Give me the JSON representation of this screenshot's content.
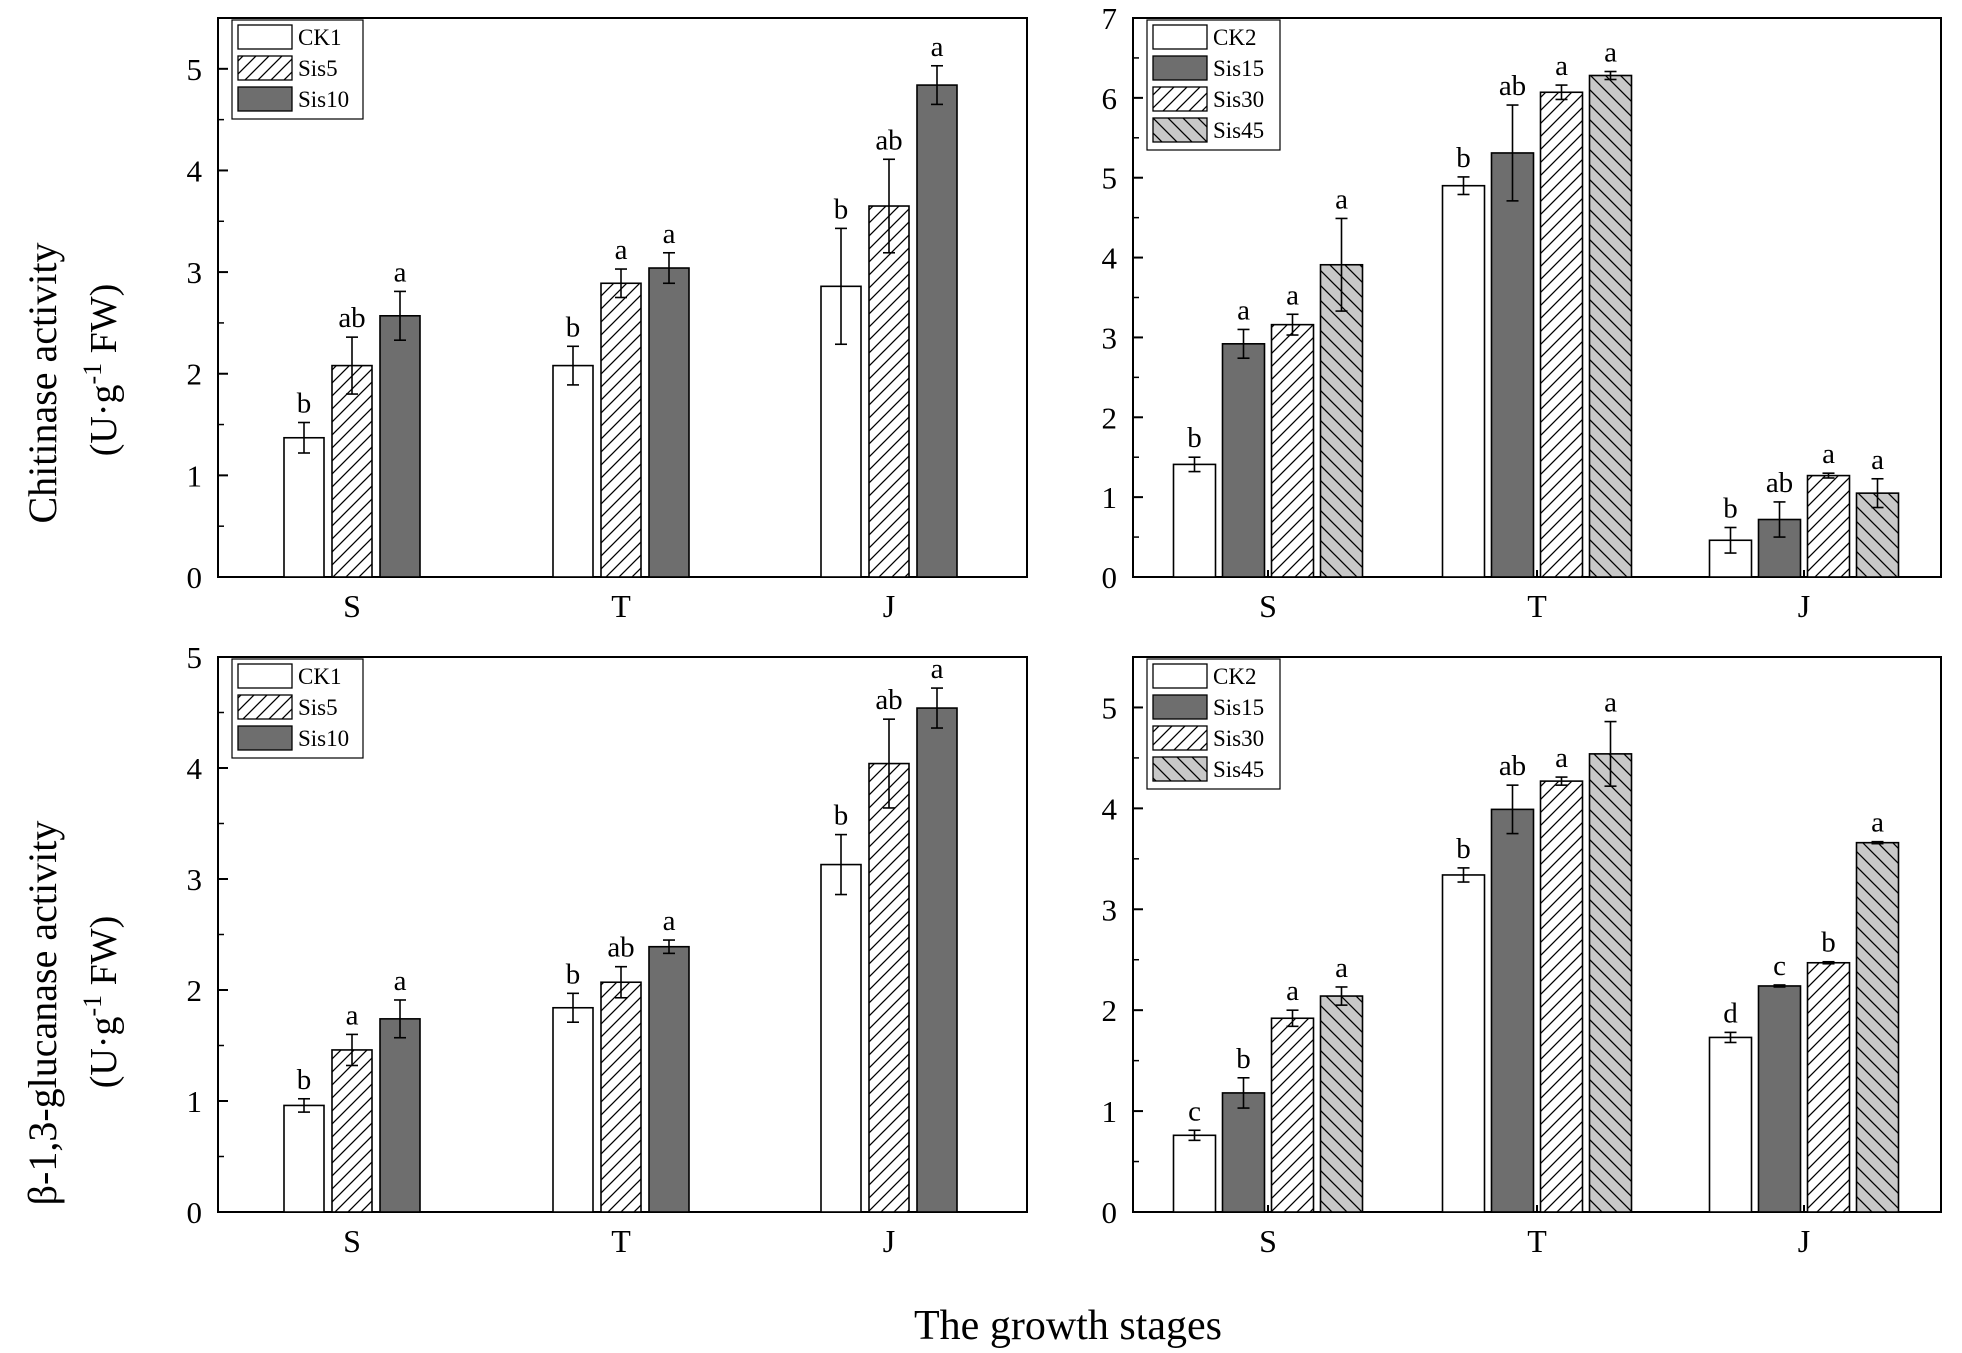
{
  "figure": {
    "ylabel_top_line1": "Chitinase activity",
    "ylabel_top_line2_pre": "(U·g",
    "ylabel_top_line2_sup": "-1",
    "ylabel_top_line2_post": " FW)",
    "ylabel_bottom_line1": "β-1,3-glucanase activity",
    "ylabel_bottom_line2_pre": "(U·g",
    "ylabel_bottom_line2_sup": "-1",
    "ylabel_bottom_line2_post": " FW)",
    "xlabel": "The growth stages"
  },
  "colors": {
    "white": "#ffffff",
    "dark": "#6e6e6e",
    "light": "#c8c8c8",
    "axis": "#000000"
  },
  "chart_data": [
    {
      "id": "chitinase-left",
      "type": "bar",
      "title": "",
      "xlabel": "",
      "ylabel": "Chitinase activity (U·g-1 FW)",
      "ylim": [
        0,
        5.5
      ],
      "yticks": [
        0,
        1,
        2,
        3,
        4,
        5
      ],
      "categories": [
        "S",
        "T",
        "J"
      ],
      "legend_position": "top-left",
      "series": [
        {
          "name": "CK1",
          "fill": "white",
          "hatch": "none",
          "values": [
            1.37,
            2.08,
            2.86
          ],
          "errors": [
            0.15,
            0.19,
            0.57
          ],
          "labels": [
            "b",
            "b",
            "b"
          ]
        },
        {
          "name": "Sis5",
          "fill": "white",
          "hatch": "diag",
          "values": [
            2.08,
            2.89,
            3.65
          ],
          "errors": [
            0.28,
            0.14,
            0.46
          ],
          "labels": [
            "ab",
            "a",
            "ab"
          ]
        },
        {
          "name": "Sis10",
          "fill": "dark",
          "hatch": "none",
          "values": [
            2.57,
            3.04,
            4.84
          ],
          "errors": [
            0.24,
            0.15,
            0.19
          ],
          "labels": [
            "a",
            "a",
            "a"
          ]
        }
      ]
    },
    {
      "id": "chitinase-right",
      "type": "bar",
      "title": "",
      "xlabel": "",
      "ylabel": "Chitinase activity (U·g-1 FW)",
      "ylim": [
        0,
        7
      ],
      "yticks": [
        0,
        1,
        2,
        3,
        4,
        5,
        6,
        7
      ],
      "categories": [
        "S",
        "T",
        "J"
      ],
      "legend_position": "top-left",
      "series": [
        {
          "name": "CK2",
          "fill": "white",
          "hatch": "none",
          "values": [
            1.41,
            4.9,
            0.46
          ],
          "errors": [
            0.09,
            0.11,
            0.16
          ],
          "labels": [
            "b",
            "b",
            "b"
          ]
        },
        {
          "name": "Sis15",
          "fill": "dark",
          "hatch": "none",
          "values": [
            2.92,
            5.31,
            0.72
          ],
          "errors": [
            0.18,
            0.6,
            0.22
          ],
          "labels": [
            "a",
            "ab",
            "ab"
          ]
        },
        {
          "name": "Sis30",
          "fill": "white",
          "hatch": "diag",
          "values": [
            3.16,
            6.07,
            1.27
          ],
          "errors": [
            0.13,
            0.09,
            0.03
          ],
          "labels": [
            "a",
            "a",
            "a"
          ]
        },
        {
          "name": "Sis45",
          "fill": "light",
          "hatch": "back",
          "values": [
            3.91,
            6.28,
            1.05
          ],
          "errors": [
            0.58,
            0.05,
            0.18
          ],
          "labels": [
            "a",
            "a",
            "a"
          ]
        }
      ]
    },
    {
      "id": "glucanase-left",
      "type": "bar",
      "title": "",
      "xlabel": "",
      "ylabel": "β-1,3-glucanase activity (U·g-1 FW)",
      "ylim": [
        0,
        5
      ],
      "yticks": [
        0,
        1,
        2,
        3,
        4,
        5
      ],
      "categories": [
        "S",
        "T",
        "J"
      ],
      "legend_position": "top-left",
      "series": [
        {
          "name": "CK1",
          "fill": "white",
          "hatch": "none",
          "values": [
            0.96,
            1.84,
            3.13
          ],
          "errors": [
            0.06,
            0.13,
            0.27
          ],
          "labels": [
            "b",
            "b",
            "b"
          ]
        },
        {
          "name": "Sis5",
          "fill": "white",
          "hatch": "diag",
          "values": [
            1.46,
            2.07,
            4.04
          ],
          "errors": [
            0.14,
            0.14,
            0.4
          ],
          "labels": [
            "a",
            "ab",
            "ab"
          ]
        },
        {
          "name": "Sis10",
          "fill": "dark",
          "hatch": "none",
          "values": [
            1.74,
            2.39,
            4.54
          ],
          "errors": [
            0.17,
            0.06,
            0.18
          ],
          "labels": [
            "a",
            "a",
            "a"
          ]
        }
      ]
    },
    {
      "id": "glucanase-right",
      "type": "bar",
      "title": "",
      "xlabel": "",
      "ylabel": "β-1,3-glucanase activity (U·g-1 FW)",
      "ylim": [
        0,
        5.5
      ],
      "yticks": [
        0,
        1,
        2,
        3,
        4,
        5
      ],
      "categories": [
        "S",
        "T",
        "J"
      ],
      "legend_position": "top-left",
      "series": [
        {
          "name": "CK2",
          "fill": "white",
          "hatch": "none",
          "values": [
            0.76,
            3.34,
            1.73
          ],
          "errors": [
            0.05,
            0.07,
            0.05
          ],
          "labels": [
            "c",
            "b",
            "d"
          ]
        },
        {
          "name": "Sis15",
          "fill": "dark",
          "hatch": "none",
          "values": [
            1.18,
            3.99,
            2.24
          ],
          "errors": [
            0.15,
            0.24,
            0.01
          ],
          "labels": [
            "b",
            "ab",
            "c"
          ]
        },
        {
          "name": "Sis30",
          "fill": "white",
          "hatch": "diag",
          "values": [
            1.92,
            4.27,
            2.47
          ],
          "errors": [
            0.08,
            0.04,
            0.01
          ],
          "labels": [
            "a",
            "a",
            "b"
          ]
        },
        {
          "name": "Sis45",
          "fill": "light",
          "hatch": "back",
          "values": [
            2.14,
            4.54,
            3.66
          ],
          "errors": [
            0.09,
            0.32,
            0.01
          ],
          "labels": [
            "a",
            "a",
            "a"
          ]
        }
      ]
    }
  ]
}
